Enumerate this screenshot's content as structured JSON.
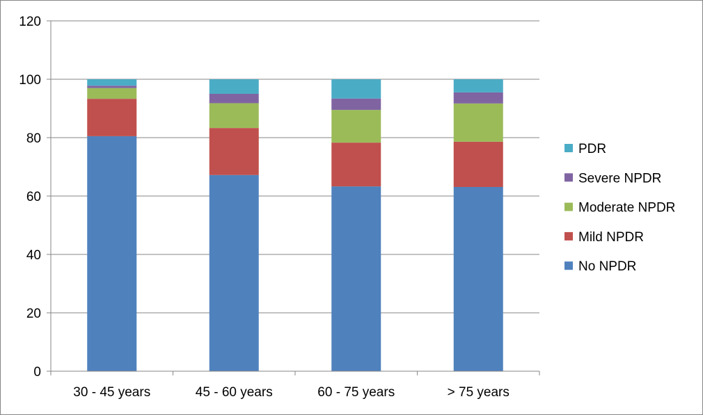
{
  "chart_data": {
    "type": "bar",
    "stacked": true,
    "title": "",
    "xlabel": "",
    "ylabel": "",
    "ylim": [
      0,
      120
    ],
    "yticks": [
      "0",
      "20",
      "40",
      "60",
      "80",
      "100",
      "120"
    ],
    "grid": true,
    "legend_position": "right",
    "categories": [
      "30 - 45 years",
      "45 - 60 years",
      "60 - 75 years",
      "> 75 years"
    ],
    "series": [
      {
        "name": "No NPDR",
        "color": "#4F81BD",
        "values": [
          80.5,
          67.2,
          63.3,
          63.1
        ]
      },
      {
        "name": "Mild NPDR",
        "color": "#C0504D",
        "values": [
          12.8,
          16.1,
          15.0,
          15.5
        ]
      },
      {
        "name": "Moderate NPDR",
        "color": "#9BBB59",
        "values": [
          3.7,
          8.5,
          11.2,
          13.1
        ]
      },
      {
        "name": "Severe NPDR",
        "color": "#8064A2",
        "values": [
          0.8,
          3.2,
          3.9,
          3.8
        ]
      },
      {
        "name": "PDR",
        "color": "#4BACC6",
        "values": [
          2.2,
          5.0,
          6.6,
          4.5
        ]
      }
    ]
  }
}
